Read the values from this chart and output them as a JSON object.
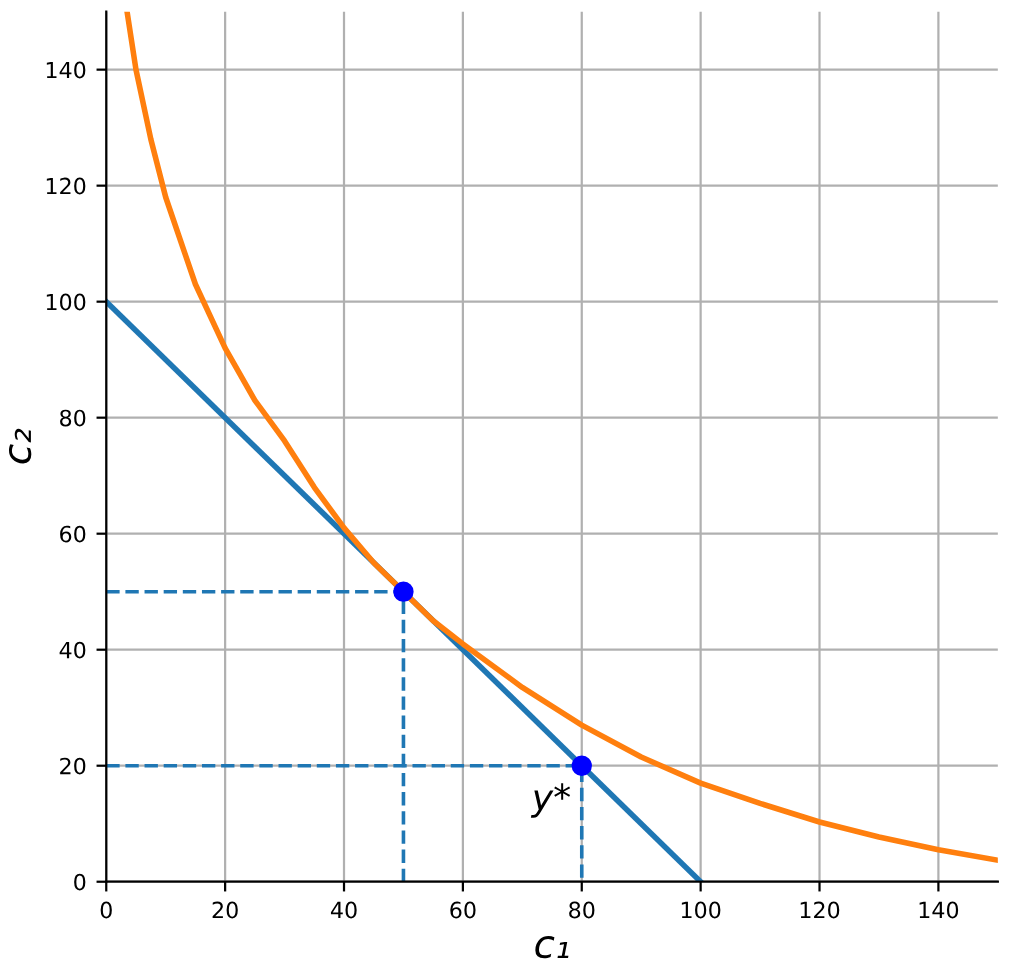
{
  "chart_data": {
    "type": "line",
    "xlabel": "c₁",
    "ylabel": "c₂",
    "xlim": [
      0,
      150
    ],
    "ylim": [
      0,
      150
    ],
    "xticks": [
      0,
      20,
      40,
      60,
      80,
      100,
      120,
      140
    ],
    "yticks": [
      0,
      20,
      40,
      60,
      80,
      100,
      120,
      140
    ],
    "grid": true,
    "series": [
      {
        "color": "#1f77b4",
        "line_style": "solid",
        "x": [
          0,
          100
        ],
        "values": [
          100,
          0
        ]
      },
      {
        "color": "#ff7f0e",
        "line_style": "solid",
        "x": [
          3.5,
          5,
          7.5,
          10,
          15,
          20,
          25,
          30,
          35,
          40,
          45,
          50,
          55,
          60,
          70,
          80,
          90,
          100,
          110,
          120,
          130,
          140,
          150
        ],
        "values": [
          150,
          140,
          128,
          118,
          103,
          92,
          83,
          76,
          68,
          61,
          55,
          50,
          45,
          41,
          33.5,
          27,
          21.5,
          17,
          13.5,
          10.3,
          7.7,
          5.5,
          3.7
        ]
      },
      {
        "color": "#1f77b4",
        "line_style": "dashed",
        "x": [
          0,
          50,
          50
        ],
        "values": [
          50,
          50,
          0
        ]
      },
      {
        "color": "#1f77b4",
        "line_style": "dashed",
        "x": [
          0,
          80,
          80
        ],
        "values": [
          20,
          20,
          0
        ]
      },
      {
        "type": "scatter",
        "color": "#0000ff",
        "marker": "circle",
        "x": [
          50,
          80
        ],
        "values": [
          50,
          20
        ]
      }
    ],
    "annotations": [
      {
        "text": "y*",
        "x": 80,
        "y": 20
      }
    ]
  }
}
